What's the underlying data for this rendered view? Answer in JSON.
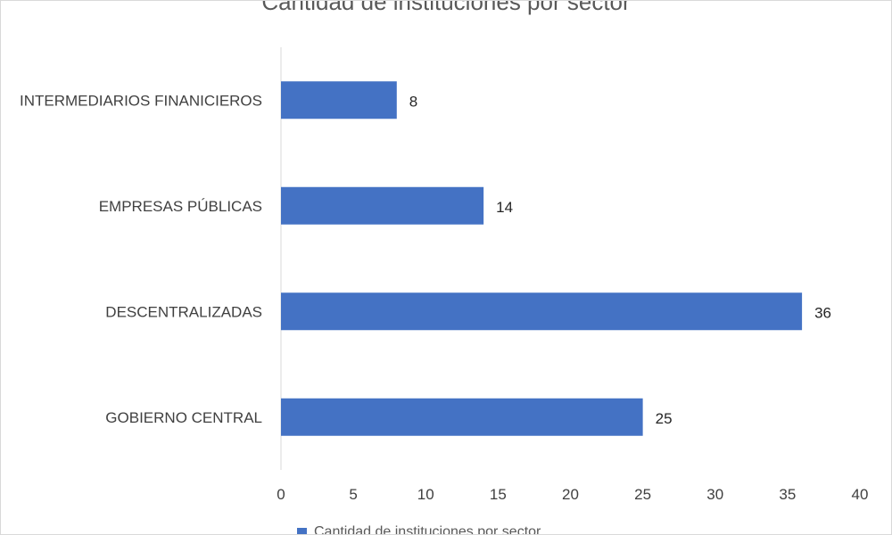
{
  "chart_data": {
    "type": "bar",
    "orientation": "horizontal",
    "title": "Cantidad de instituciones por sector",
    "categories": [
      "INTERMEDIARIOS FINANICIEROS",
      "EMPRESAS PÚBLICAS",
      "DESCENTRALIZADAS",
      "GOBIERNO CENTRAL"
    ],
    "series": [
      {
        "name": "Cantidad de instituciones por sector",
        "values": [
          8,
          14,
          36,
          25
        ],
        "color": "#4472c4"
      }
    ],
    "xlim": [
      0,
      40
    ],
    "xticks": [
      "0",
      "5",
      "10",
      "15",
      "20",
      "25",
      "30",
      "35",
      "40"
    ],
    "xlabel": "",
    "ylabel": "",
    "grid": false,
    "data_labels": true,
    "legend_position": "bottom"
  }
}
